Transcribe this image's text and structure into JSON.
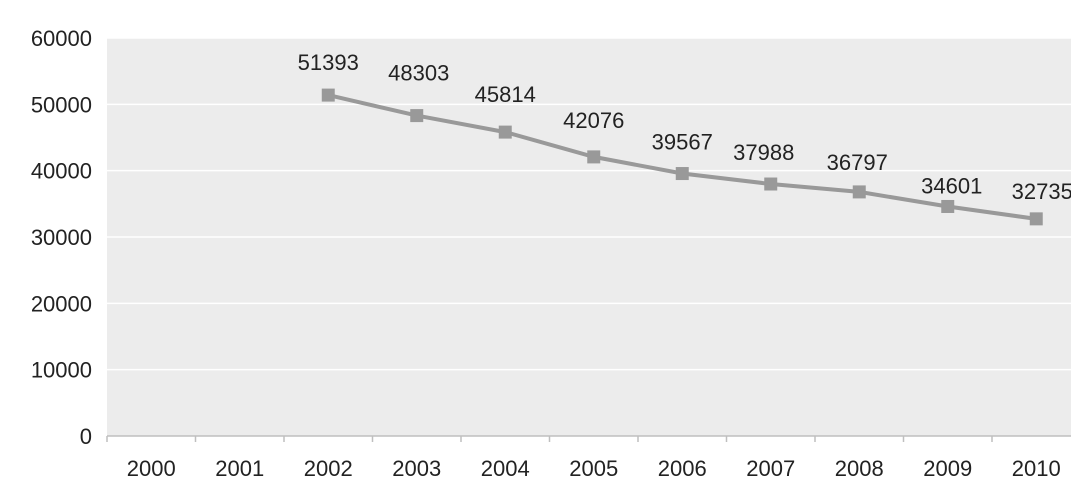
{
  "chart_data": {
    "type": "line",
    "title": "",
    "xlabel": "",
    "ylabel": "",
    "categories": [
      "2000",
      "2001",
      "2002",
      "2003",
      "2004",
      "2005",
      "2006",
      "2007",
      "2008",
      "2009",
      "2010"
    ],
    "y_ticks": [
      "0",
      "10000",
      "20000",
      "30000",
      "40000",
      "50000",
      "60000"
    ],
    "ylim": [
      0,
      60000
    ],
    "grid": true,
    "legend": "none",
    "series": [
      {
        "values": [
          null,
          null,
          51393,
          48303,
          45814,
          42076,
          39567,
          37988,
          36797,
          34601,
          32735
        ],
        "labels": [
          "",
          "",
          "51393",
          "48303",
          "45814",
          "42076",
          "39567",
          "37988",
          "36797",
          "34601",
          "32735"
        ]
      }
    ],
    "colors": {
      "plot_background": "#ececec",
      "gridline": "#ffffff",
      "series_line": "#999999",
      "marker": "#999999",
      "axis": "#bfbfbf"
    }
  }
}
